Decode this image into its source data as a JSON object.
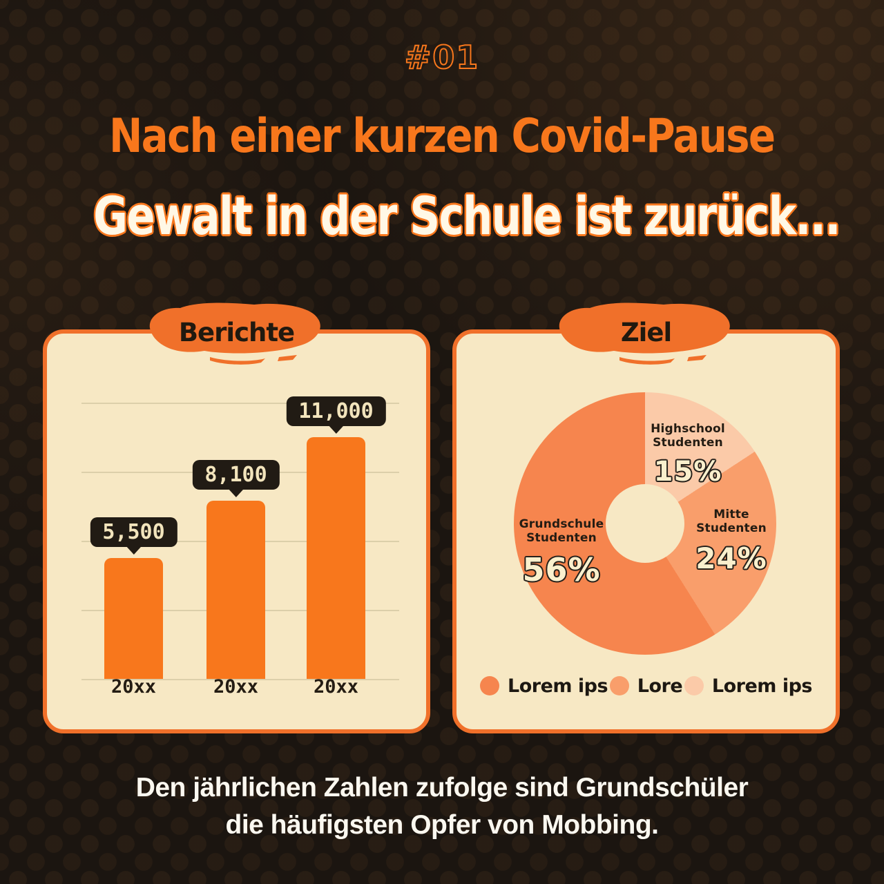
{
  "header": {
    "issue": "#01",
    "title_line1": "Nach einer kurzen Covid-Pause",
    "title_line2": "Gewalt in der Schule ist zurück..."
  },
  "footer": {
    "line1": "Den jährlichen Zahlen zufolge sind Grundschüler",
    "line2": "die häufigsten Opfer von Mobbing."
  },
  "colors": {
    "background": "#1b1510",
    "accent_orange": "#f8771c",
    "brush_orange": "#f0702a",
    "card_background": "#f7e8c4",
    "badge_background": "#211b14",
    "badge_text": "#f2e4bc",
    "dark_text": "#241c13",
    "cream_text": "#faf0cd",
    "white_text": "#fbf8f0"
  },
  "cards": {
    "reports": {
      "tag": "Berichte"
    },
    "target": {
      "tag": "Ziel"
    }
  },
  "chart_data": [
    {
      "type": "bar",
      "title": "Berichte",
      "categories": [
        "20xx",
        "20xx",
        "20xx"
      ],
      "values": [
        5500,
        8100,
        11000
      ],
      "value_labels": [
        "5,500",
        "8,100",
        "11,000"
      ],
      "bar_color": "#f8771c",
      "gridlines": 5,
      "ylim": [
        0,
        11000
      ],
      "legend_position": "none"
    },
    {
      "type": "pie",
      "title": "Ziel",
      "donut": true,
      "segments": [
        {
          "label": "Highschool Studenten",
          "pct_label": "15%",
          "value": 15,
          "color": "#fbcaa8"
        },
        {
          "label": "Mitte Studenten",
          "pct_label": "24%",
          "value": 24,
          "color": "#f99e6b"
        },
        {
          "label": "Grundschule Studenten",
          "pct_label": "56%",
          "value": 56,
          "color": "#f6854e"
        }
      ],
      "legend": [
        {
          "label": "Lorem ips",
          "color": "#f6854e"
        },
        {
          "label": "Lore",
          "color": "#f99e6b"
        },
        {
          "label": "Lorem ips",
          "color": "#fbcaa8"
        }
      ],
      "legend_position": "bottom"
    }
  ]
}
